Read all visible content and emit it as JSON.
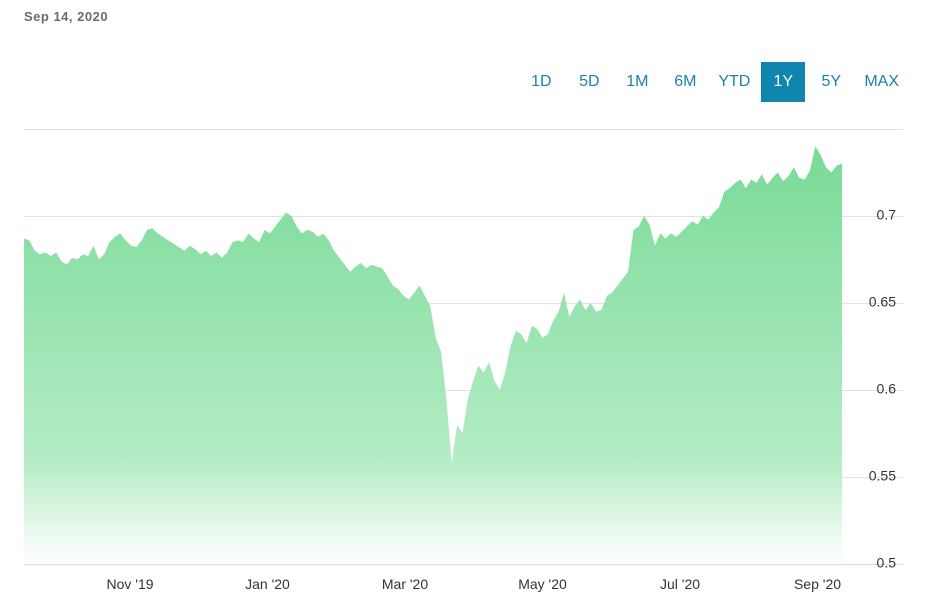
{
  "header": {
    "date": "Sep 14, 2020"
  },
  "range_selector": {
    "buttons": [
      "1D",
      "5D",
      "1M",
      "6M",
      "YTD",
      "1Y",
      "5Y",
      "MAX"
    ],
    "active": "1Y"
  },
  "colors": {
    "area_top": "#79da97",
    "area_bottom": "#ffffff",
    "active_button": "#0f86ae",
    "button_text": "#1d82a8"
  },
  "chart_data": {
    "type": "area",
    "title": "",
    "xlabel": "",
    "ylabel": "",
    "ylim": [
      0.5,
      0.75
    ],
    "y_ticks": [
      "0.7",
      "0.65",
      "0.6",
      "0.55",
      "0.5"
    ],
    "x_ticks": [
      "Nov '19",
      "Jan '20",
      "Mar '20",
      "May '20",
      "Jul '20",
      "Sep '20"
    ],
    "grid": true,
    "series": [
      {
        "values": [
          0.687,
          0.686,
          0.68,
          0.678,
          0.679,
          0.677,
          0.679,
          0.674,
          0.672,
          0.676,
          0.675,
          0.678,
          0.677,
          0.683,
          0.675,
          0.678,
          0.685,
          0.688,
          0.69,
          0.686,
          0.683,
          0.682,
          0.686,
          0.692,
          0.693,
          0.69,
          0.688,
          0.686,
          0.684,
          0.682,
          0.68,
          0.683,
          0.681,
          0.678,
          0.68,
          0.677,
          0.679,
          0.676,
          0.679,
          0.685,
          0.686,
          0.685,
          0.69,
          0.687,
          0.685,
          0.692,
          0.69,
          0.694,
          0.698,
          0.702,
          0.7,
          0.694,
          0.69,
          0.692,
          0.691,
          0.688,
          0.69,
          0.686,
          0.68,
          0.676,
          0.672,
          0.668,
          0.671,
          0.673,
          0.67,
          0.672,
          0.671,
          0.67,
          0.665,
          0.66,
          0.658,
          0.654,
          0.652,
          0.656,
          0.66,
          0.654,
          0.648,
          0.63,
          0.622,
          0.595,
          0.558,
          0.58,
          0.575,
          0.595,
          0.605,
          0.614,
          0.61,
          0.616,
          0.605,
          0.6,
          0.61,
          0.625,
          0.634,
          0.632,
          0.627,
          0.637,
          0.635,
          0.63,
          0.632,
          0.64,
          0.645,
          0.656,
          0.642,
          0.648,
          0.652,
          0.646,
          0.65,
          0.645,
          0.646,
          0.654,
          0.656,
          0.66,
          0.664,
          0.668,
          0.692,
          0.694,
          0.7,
          0.695,
          0.683,
          0.69,
          0.687,
          0.69,
          0.688,
          0.691,
          0.694,
          0.697,
          0.695,
          0.7,
          0.698,
          0.702,
          0.705,
          0.714,
          0.716,
          0.719,
          0.721,
          0.716,
          0.721,
          0.719,
          0.724,
          0.718,
          0.722,
          0.725,
          0.72,
          0.723,
          0.728,
          0.722,
          0.721,
          0.726,
          0.74,
          0.735,
          0.728,
          0.725,
          0.729,
          0.73
        ]
      }
    ]
  }
}
